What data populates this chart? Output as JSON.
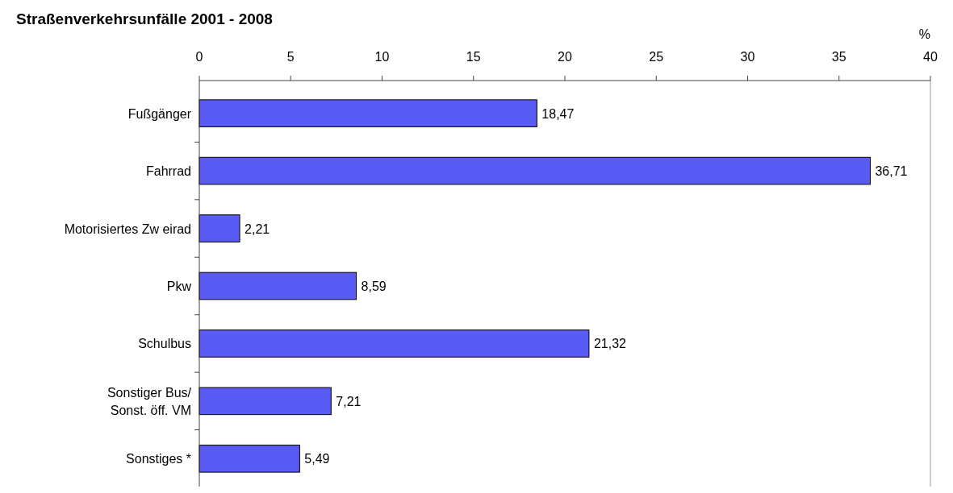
{
  "chart_data": {
    "type": "bar",
    "orientation": "horizontal",
    "title": "Straßenverkehrsunfälle 2001 - 2008",
    "xlabel": "%",
    "categories": [
      "Fußgänger",
      "Fahrrad",
      "Motorisiertes Zw eirad",
      "Pkw",
      "Schulbus",
      "Sonstiger Bus/\nSonst. öff. VM",
      "Sonstiges *"
    ],
    "values": [
      18.47,
      36.71,
      2.21,
      8.59,
      21.32,
      7.21,
      5.49
    ],
    "value_labels": [
      "18,47",
      "36,71",
      "2,21",
      "8,59",
      "21,32",
      "7,21",
      "5,49"
    ],
    "color": "#5a5af5",
    "xlim": [
      0,
      40
    ],
    "xticks": [
      0,
      5,
      10,
      15,
      20,
      25,
      30,
      35,
      40
    ],
    "grid": false
  }
}
